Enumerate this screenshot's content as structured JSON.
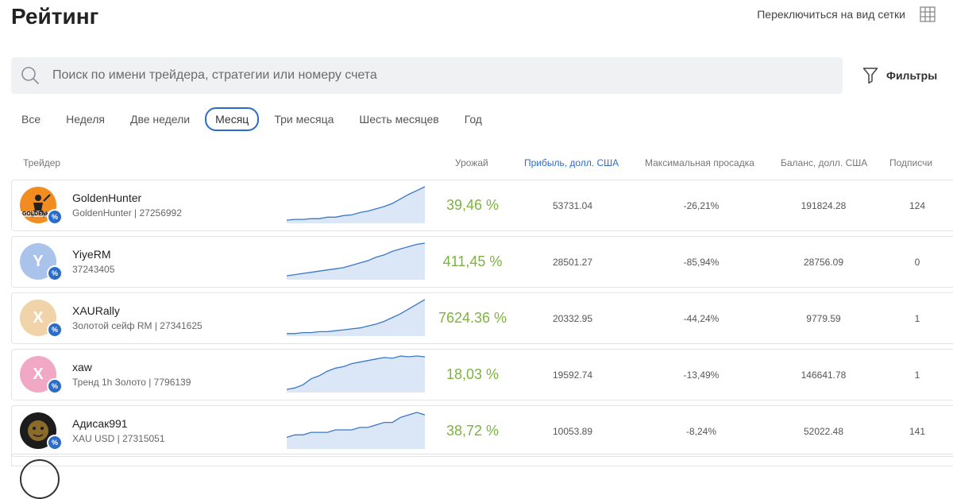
{
  "page": {
    "title": "Рейтинг",
    "grid_switch_label": "Переключиться на вид сетки"
  },
  "search": {
    "placeholder": "Поиск по имени трейдера, стратегии или номеру счета",
    "value": ""
  },
  "filters": {
    "label": "Фильтры"
  },
  "periods": [
    {
      "label": "Все",
      "active": false
    },
    {
      "label": "Неделя",
      "active": false
    },
    {
      "label": "Две недели",
      "active": false
    },
    {
      "label": "Месяц",
      "active": true
    },
    {
      "label": "Три месяца",
      "active": false
    },
    {
      "label": "Шесть месяцев",
      "active": false
    },
    {
      "label": "Год",
      "active": false
    }
  ],
  "table": {
    "headers": {
      "trader": "Трейдер",
      "gain": "Урожай",
      "profit": "Прибыль, долл. США",
      "drawdown": "Максимальная просадка",
      "balance": "Баланс, долл. США",
      "subscribers": "Подписчи"
    },
    "rows": [
      {
        "name": "GoldenHunter",
        "sub": "GoldenHunter | 27256992",
        "gain": "39,46 %",
        "profit": "53731.04",
        "drawdown": "-26,21%",
        "balance": "191824.28",
        "subscribers": "124",
        "avatar": {
          "type": "logo",
          "letter": "",
          "color": "#f28c1e",
          "caption": "GOLDENHU"
        },
        "spark": [
          2,
          3,
          3,
          4,
          4,
          6,
          6,
          8,
          9,
          12,
          14,
          17,
          20,
          24,
          30,
          36,
          41,
          46
        ]
      },
      {
        "name": "YiyeRM",
        "sub": "37243405",
        "gain": "411,45 %",
        "profit": "28501.27",
        "drawdown": "-85,94%",
        "balance": "28756.09",
        "subscribers": "0",
        "avatar": {
          "type": "letter",
          "letter": "Y",
          "color": "#a9c3ea"
        },
        "spark": [
          2,
          3,
          4,
          5,
          6,
          7,
          8,
          9,
          11,
          13,
          15,
          18,
          20,
          23,
          25,
          27,
          29,
          30
        ]
      },
      {
        "name": "XAURally",
        "sub": "Золотой сейф RM | 27341625",
        "gain": "7624.36 %",
        "profit": "20332.95",
        "drawdown": "-44,24%",
        "balance": "9779.59",
        "subscribers": "1",
        "avatar": {
          "type": "letter",
          "letter": "X",
          "color": "#f0d3a8"
        },
        "spark": [
          1,
          1,
          2,
          2,
          3,
          3,
          4,
          5,
          6,
          7,
          9,
          11,
          14,
          18,
          22,
          27,
          32,
          37
        ]
      },
      {
        "name": "xaw",
        "sub": "Тренд 1h Золото | 7796139",
        "gain": "18,03 %",
        "profit": "19592.74",
        "drawdown": "-13,49%",
        "balance": "146641.78",
        "subscribers": "1",
        "avatar": {
          "type": "letter",
          "letter": "X",
          "color": "#f1a8c5"
        },
        "spark": [
          2,
          4,
          8,
          16,
          20,
          26,
          30,
          32,
          36,
          38,
          40,
          42,
          44,
          43,
          46,
          45,
          46,
          45
        ]
      },
      {
        "name": "Адисак991",
        "sub": "XAU USD | 27315051",
        "gain": "38,72 %",
        "profit": "10053.89",
        "drawdown": "-8,24%",
        "balance": "52022.48",
        "subscribers": "141",
        "avatar": {
          "type": "logo",
          "letter": "",
          "color": "#1c1c1c",
          "caption": ""
        },
        "spark": [
          4,
          5,
          5,
          6,
          6,
          6,
          7,
          7,
          7,
          8,
          8,
          9,
          10,
          10,
          12,
          13,
          14,
          13
        ]
      }
    ]
  },
  "colors": {
    "accent": "#2b6cc9",
    "gain": "#7cb342",
    "spark_line": "#3a78c8",
    "spark_fill": "#dbe7f7"
  }
}
